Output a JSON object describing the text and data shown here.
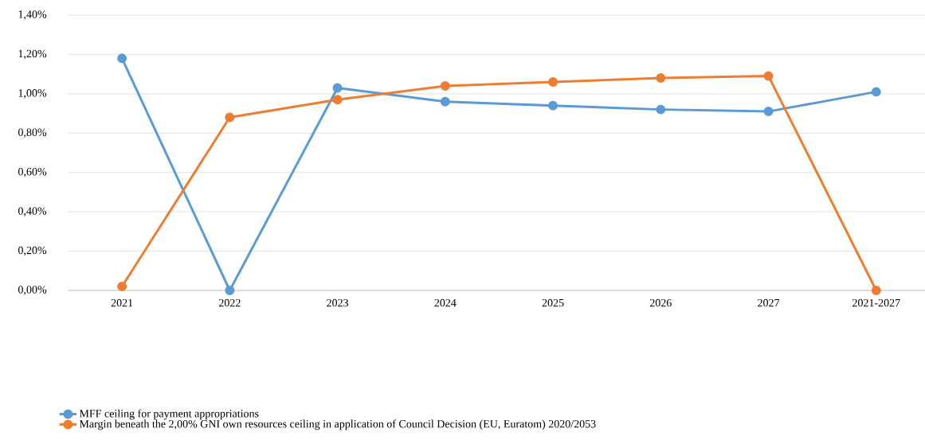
{
  "chart_data": {
    "type": "line",
    "categories": [
      "2021",
      "2022",
      "2023",
      "2024",
      "2025",
      "2026",
      "2027",
      "2021-2027"
    ],
    "series": [
      {
        "name": "MFF ceiling for payment appropriations",
        "color": "#5b9bd5",
        "values": [
          1.18,
          0.0,
          1.03,
          0.96,
          0.94,
          0.92,
          0.91,
          1.01
        ]
      },
      {
        "name": "Margin beneath the 2,00% GNI own resources ceiling in application of Council Decision (EU, Euratom) 2020/2053",
        "color": "#ed7d31",
        "values": [
          0.02,
          0.88,
          0.97,
          1.04,
          1.06,
          1.08,
          1.09,
          0.0
        ]
      }
    ],
    "ylim": [
      0,
      1.4
    ],
    "yticks": [
      {
        "value": 0,
        "label": "0,00%"
      },
      {
        "value": 0.2,
        "label": "0,20%"
      },
      {
        "value": 0.4,
        "label": "0,40%"
      },
      {
        "value": 0.6,
        "label": "0,60%"
      },
      {
        "value": 0.8,
        "label": "0,80%"
      },
      {
        "value": 1.0,
        "label": "1,00%"
      },
      {
        "value": 1.2,
        "label": "1,20%"
      },
      {
        "value": 1.4,
        "label": "1,40%"
      }
    ],
    "grid": "y",
    "legend": "bottom left",
    "marker": "circle",
    "line_style": "solid"
  }
}
